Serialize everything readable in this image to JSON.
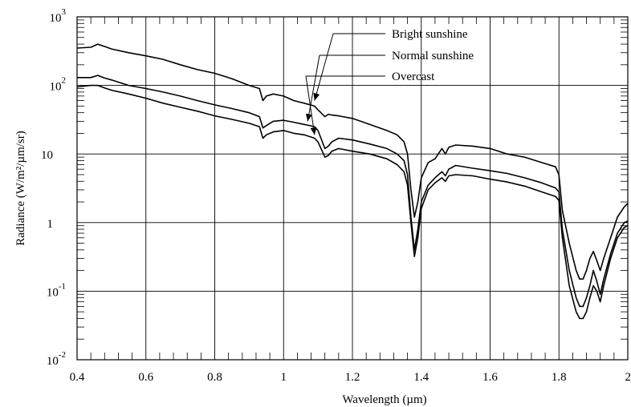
{
  "chart_data": {
    "type": "line",
    "title": "",
    "xlabel": "Wavelength (µm)",
    "ylabel": "Radiance (W/m²/µm/sr)",
    "x_scale": "linear",
    "y_scale": "log",
    "xlim": [
      0.4,
      2.0
    ],
    "ylim": [
      0.01,
      1000
    ],
    "grid": true,
    "x_ticks": [
      "0.4",
      "0.6",
      "0.8",
      "1",
      "1.2",
      "1.4",
      "1.6",
      "1.8",
      "2"
    ],
    "y_ticks": [
      {
        "base": "10",
        "exp": "-2"
      },
      {
        "base": "10",
        "exp": "-1"
      },
      {
        "base": "1",
        "exp": ""
      },
      {
        "base": "10",
        "exp": ""
      },
      {
        "base": "10",
        "exp": "2"
      },
      {
        "base": "10",
        "exp": "3"
      }
    ],
    "series": [
      {
        "name": "Bright sunshine",
        "label_anchor": [
          1.09,
          60
        ],
        "x": [
          0.4,
          0.44,
          0.46,
          0.48,
          0.5,
          0.55,
          0.6,
          0.65,
          0.7,
          0.75,
          0.8,
          0.85,
          0.9,
          0.93,
          0.94,
          0.95,
          0.97,
          1.0,
          1.03,
          1.06,
          1.09,
          1.1,
          1.12,
          1.13,
          1.14,
          1.16,
          1.2,
          1.25,
          1.3,
          1.33,
          1.35,
          1.36,
          1.37,
          1.38,
          1.39,
          1.4,
          1.42,
          1.44,
          1.46,
          1.47,
          1.48,
          1.5,
          1.55,
          1.6,
          1.65,
          1.7,
          1.75,
          1.79,
          1.8,
          1.81,
          1.83,
          1.85,
          1.86,
          1.87,
          1.88,
          1.89,
          1.9,
          1.91,
          1.92,
          1.93,
          1.95,
          1.97,
          1.99,
          2.0
        ],
        "y": [
          350,
          360,
          400,
          370,
          340,
          300,
          270,
          240,
          200,
          170,
          150,
          125,
          100,
          90,
          60,
          70,
          75,
          70,
          60,
          55,
          50,
          44,
          35,
          38,
          37,
          36,
          33,
          27,
          22,
          19,
          15,
          10,
          3,
          1.2,
          2,
          4.5,
          7.5,
          8.5,
          12,
          10,
          12.5,
          13.5,
          13,
          12,
          10,
          9,
          7.5,
          6.5,
          5,
          1.5,
          0.5,
          0.2,
          0.15,
          0.15,
          0.2,
          0.3,
          0.38,
          0.28,
          0.2,
          0.3,
          0.6,
          1.2,
          1.7,
          1.9
        ]
      },
      {
        "name": "Normal sunshine",
        "label_anchor": [
          1.07,
          30
        ],
        "x": [
          0.4,
          0.44,
          0.46,
          0.48,
          0.5,
          0.55,
          0.6,
          0.65,
          0.7,
          0.75,
          0.8,
          0.85,
          0.9,
          0.93,
          0.94,
          0.95,
          0.97,
          1.0,
          1.03,
          1.06,
          1.09,
          1.1,
          1.12,
          1.13,
          1.14,
          1.16,
          1.2,
          1.25,
          1.3,
          1.33,
          1.35,
          1.36,
          1.37,
          1.38,
          1.39,
          1.4,
          1.42,
          1.44,
          1.46,
          1.47,
          1.48,
          1.5,
          1.55,
          1.6,
          1.65,
          1.7,
          1.75,
          1.79,
          1.8,
          1.81,
          1.83,
          1.85,
          1.86,
          1.87,
          1.88,
          1.89,
          1.9,
          1.91,
          1.92,
          1.93,
          1.95,
          1.97,
          1.99,
          2.0
        ],
        "y": [
          130,
          130,
          140,
          128,
          120,
          100,
          90,
          80,
          70,
          60,
          52,
          46,
          40,
          35,
          24,
          26,
          30,
          31,
          29,
          27,
          25,
          22,
          12,
          13,
          15,
          17,
          16,
          14,
          12,
          10,
          8,
          5,
          1.2,
          0.4,
          0.8,
          2,
          3.5,
          4.5,
          5.5,
          4.8,
          6,
          6.8,
          6.2,
          5.7,
          5.2,
          4.5,
          3.8,
          3.2,
          2.8,
          0.8,
          0.2,
          0.08,
          0.06,
          0.06,
          0.08,
          0.12,
          0.2,
          0.14,
          0.09,
          0.15,
          0.35,
          0.7,
          1.0,
          1.05
        ]
      },
      {
        "name": "Overcast",
        "label_anchor": [
          1.09,
          19
        ],
        "x": [
          0.4,
          0.44,
          0.46,
          0.48,
          0.5,
          0.55,
          0.6,
          0.65,
          0.7,
          0.75,
          0.8,
          0.85,
          0.9,
          0.93,
          0.94,
          0.95,
          0.97,
          1.0,
          1.03,
          1.06,
          1.09,
          1.1,
          1.12,
          1.13,
          1.14,
          1.16,
          1.2,
          1.25,
          1.3,
          1.33,
          1.35,
          1.36,
          1.37,
          1.38,
          1.39,
          1.4,
          1.42,
          1.44,
          1.46,
          1.47,
          1.48,
          1.5,
          1.55,
          1.6,
          1.65,
          1.7,
          1.75,
          1.79,
          1.8,
          1.81,
          1.83,
          1.85,
          1.86,
          1.87,
          1.88,
          1.89,
          1.9,
          1.91,
          1.92,
          1.93,
          1.95,
          1.97,
          1.99,
          2.0
        ],
        "y": [
          95,
          100,
          100,
          92,
          85,
          75,
          65,
          55,
          48,
          42,
          36,
          32,
          28,
          25,
          17,
          19,
          21,
          22,
          20,
          19,
          17,
          15,
          9,
          9.5,
          11,
          12,
          11,
          10,
          8.5,
          7,
          5.5,
          3.5,
          1,
          0.32,
          0.6,
          1.6,
          3,
          3.8,
          4.5,
          4,
          4.8,
          5,
          4.8,
          4.3,
          3.9,
          3.4,
          2.8,
          2.4,
          2.1,
          0.6,
          0.12,
          0.05,
          0.04,
          0.04,
          0.05,
          0.08,
          0.12,
          0.1,
          0.07,
          0.12,
          0.3,
          0.6,
          0.85,
          0.9
        ]
      }
    ]
  }
}
